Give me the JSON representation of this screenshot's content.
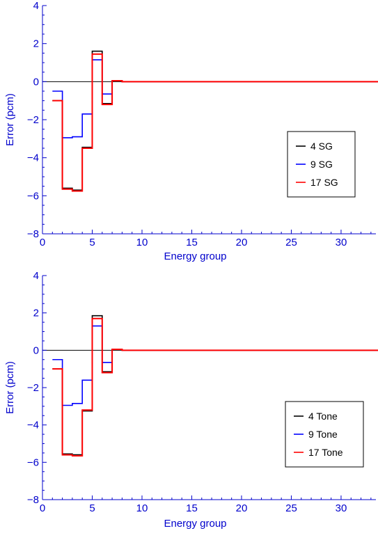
{
  "colors": {
    "axis": "#0000cc",
    "zero_line": "#000000",
    "text": "#0000cc"
  },
  "chart_data": [
    {
      "type": "line",
      "step": true,
      "xlabel": "Energy group",
      "ylabel": "Error (pcm)",
      "xlim": [
        0,
        33.5
      ],
      "ylim": [
        -8,
        4
      ],
      "xticks": [
        0,
        5,
        10,
        15,
        20,
        25,
        30
      ],
      "yticks": [
        -8,
        -6,
        -4,
        -2,
        0,
        2,
        4
      ],
      "ytick_labels": [
        "−8",
        "−6",
        "−4",
        "−2",
        "0",
        "2",
        "4"
      ],
      "grid": false,
      "zero_line": true,
      "legend_position": "lower-right",
      "x": [
        1,
        2,
        3,
        4,
        5,
        6,
        7,
        8,
        9,
        10,
        11,
        12,
        13,
        14,
        15,
        16,
        17,
        18,
        19,
        20,
        21,
        22,
        23,
        24,
        25,
        26,
        27,
        28,
        29,
        30,
        31,
        32,
        33
      ],
      "series": [
        {
          "name": "4 SG",
          "color": "#000000",
          "values": [
            -1.0,
            -5.6,
            -5.7,
            -3.45,
            1.6,
            -1.15,
            0.05,
            0,
            0,
            0,
            0,
            0,
            0,
            0,
            0,
            0,
            0,
            0,
            0,
            0,
            0,
            0,
            0,
            0,
            0,
            0,
            0,
            0,
            0,
            0,
            0,
            0,
            0
          ]
        },
        {
          "name": "9 SG",
          "color": "#0000ff",
          "values": [
            -0.5,
            -2.95,
            -2.9,
            -1.7,
            1.15,
            -0.65,
            0.05,
            0,
            0,
            0,
            0,
            0,
            0,
            0,
            0,
            0,
            0,
            0,
            0,
            0,
            0,
            0,
            0,
            0,
            0,
            0,
            0,
            0,
            0,
            0,
            0,
            0,
            0
          ]
        },
        {
          "name": "17 SG",
          "color": "#ff0000",
          "values": [
            -1.0,
            -5.65,
            -5.75,
            -3.5,
            1.45,
            -1.2,
            0.05,
            0,
            0,
            0,
            0,
            0,
            0,
            0,
            0,
            0,
            0,
            0,
            0,
            0,
            0,
            0,
            0,
            0,
            0,
            0,
            0,
            0,
            0,
            0,
            0,
            0,
            0
          ]
        }
      ]
    },
    {
      "type": "line",
      "step": true,
      "xlabel": "Energy group",
      "ylabel": "Error (pcm)",
      "xlim": [
        0,
        33.5
      ],
      "ylim": [
        -8,
        4
      ],
      "xticks": [
        0,
        5,
        10,
        15,
        20,
        25,
        30
      ],
      "yticks": [
        -8,
        -6,
        -4,
        -2,
        0,
        2,
        4
      ],
      "ytick_labels": [
        "−8",
        "−6",
        "−4",
        "−2",
        "0",
        "2",
        "4"
      ],
      "grid": false,
      "zero_line": true,
      "legend_position": "lower-right",
      "x": [
        1,
        2,
        3,
        4,
        5,
        6,
        7,
        8,
        9,
        10,
        11,
        12,
        13,
        14,
        15,
        16,
        17,
        18,
        19,
        20,
        21,
        22,
        23,
        24,
        25,
        26,
        27,
        28,
        29,
        30,
        31,
        32,
        33
      ],
      "series": [
        {
          "name": "4 Tone",
          "color": "#000000",
          "values": [
            -1.0,
            -5.55,
            -5.6,
            -3.25,
            1.85,
            -1.15,
            0.05,
            0,
            0,
            0,
            0,
            0,
            0,
            0,
            0,
            0,
            0,
            0,
            0,
            0,
            0,
            0,
            0,
            0,
            0,
            0,
            0,
            0,
            0,
            0,
            0,
            0,
            0
          ]
        },
        {
          "name": "9 Tone",
          "color": "#0000ff",
          "values": [
            -0.5,
            -2.95,
            -2.85,
            -1.6,
            1.3,
            -0.65,
            0.05,
            0,
            0,
            0,
            0,
            0,
            0,
            0,
            0,
            0,
            0,
            0,
            0,
            0,
            0,
            0,
            0,
            0,
            0,
            0,
            0,
            0,
            0,
            0,
            0,
            0,
            0
          ]
        },
        {
          "name": "17 Tone",
          "color": "#ff0000",
          "values": [
            -1.0,
            -5.6,
            -5.65,
            -3.2,
            1.7,
            -1.2,
            0.05,
            0,
            0,
            0,
            0,
            0,
            0,
            0,
            0,
            0,
            0,
            0,
            0,
            0,
            0,
            0,
            0,
            0,
            0,
            0,
            0,
            0,
            0,
            0,
            0,
            0,
            0
          ]
        }
      ]
    }
  ]
}
